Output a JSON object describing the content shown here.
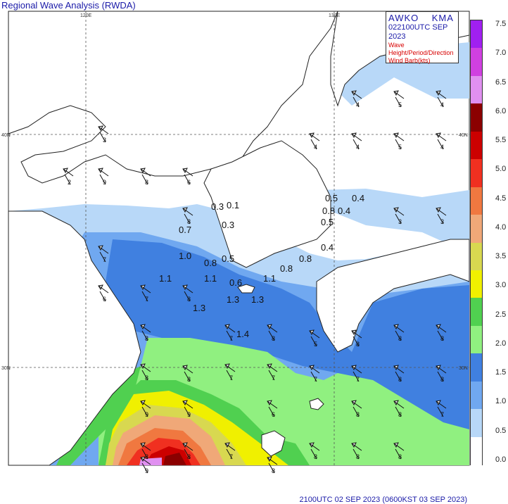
{
  "header": {
    "title": "Regional Wave Analysis (RWDA)",
    "footer": "2100UTC 02 SEP 2023 (0600KST 03 SEP 2023)"
  },
  "infobox": {
    "org_left": "AWKO",
    "org_right": "KMA",
    "time": "022100UTC SEP 2023",
    "desc1": "Wave Height/Period/Direction",
    "desc2": "Wind Barb(kts)"
  },
  "axes": {
    "lon_labels": [
      "120E",
      "130E"
    ],
    "lat_labels_left": [
      "40N",
      "30N"
    ],
    "lat_labels_right": [
      "40N",
      "30N"
    ]
  },
  "legend": {
    "labels": [
      "7.5",
      "7.0",
      "6.5",
      "6.0",
      "5.5",
      "5.0",
      "4.5",
      "4.0",
      "3.5",
      "3.0",
      "2.5",
      "2.0",
      "1.5",
      "1.0",
      "0.5",
      "0.0"
    ],
    "colors": [
      "#a020f0",
      "#d040e0",
      "#e090f0",
      "#8b0000",
      "#cc0000",
      "#f03020",
      "#f07840",
      "#f0a878",
      "#d8d850",
      "#f0f000",
      "#50d050",
      "#90f080",
      "#4080e0",
      "#70a8f0",
      "#b8d8f8",
      "#ffffff"
    ]
  },
  "wave_labels": [
    "0.3",
    "0.1",
    "0.3",
    "0.7",
    "1.0",
    "0.8",
    "0.5",
    "1.1",
    "1.1",
    "0.6",
    "1.1",
    "1.3",
    "1.3",
    "1.3",
    "1.4",
    "0.8",
    "0.8",
    "0.5",
    "0.4",
    "0.8",
    "0.4",
    "0.5",
    "0.4"
  ],
  "period_labels": [
    "3",
    "2",
    "9",
    "8",
    "6",
    "8",
    "7",
    "6",
    "7",
    "8",
    "8",
    "7",
    "8",
    "7",
    "9",
    "8",
    "7",
    "8",
    "6",
    "7",
    "8",
    "4",
    "5",
    "4",
    "4",
    "4",
    "5",
    "4",
    "3",
    "3",
    "8",
    "8",
    "8",
    "8",
    "7",
    "8",
    "8",
    "9",
    "8",
    "9",
    "7",
    "7",
    "8",
    "8",
    "5",
    "8",
    "8",
    "8"
  ],
  "map_colors": {
    "ocean_white": "#ffffff",
    "ocean_05": "#b8d8f8",
    "ocean_15": "#4080e0",
    "ocean_10": "#70a8f0",
    "land": "#ffffff",
    "grid": "#555555",
    "coast": "#222222"
  }
}
